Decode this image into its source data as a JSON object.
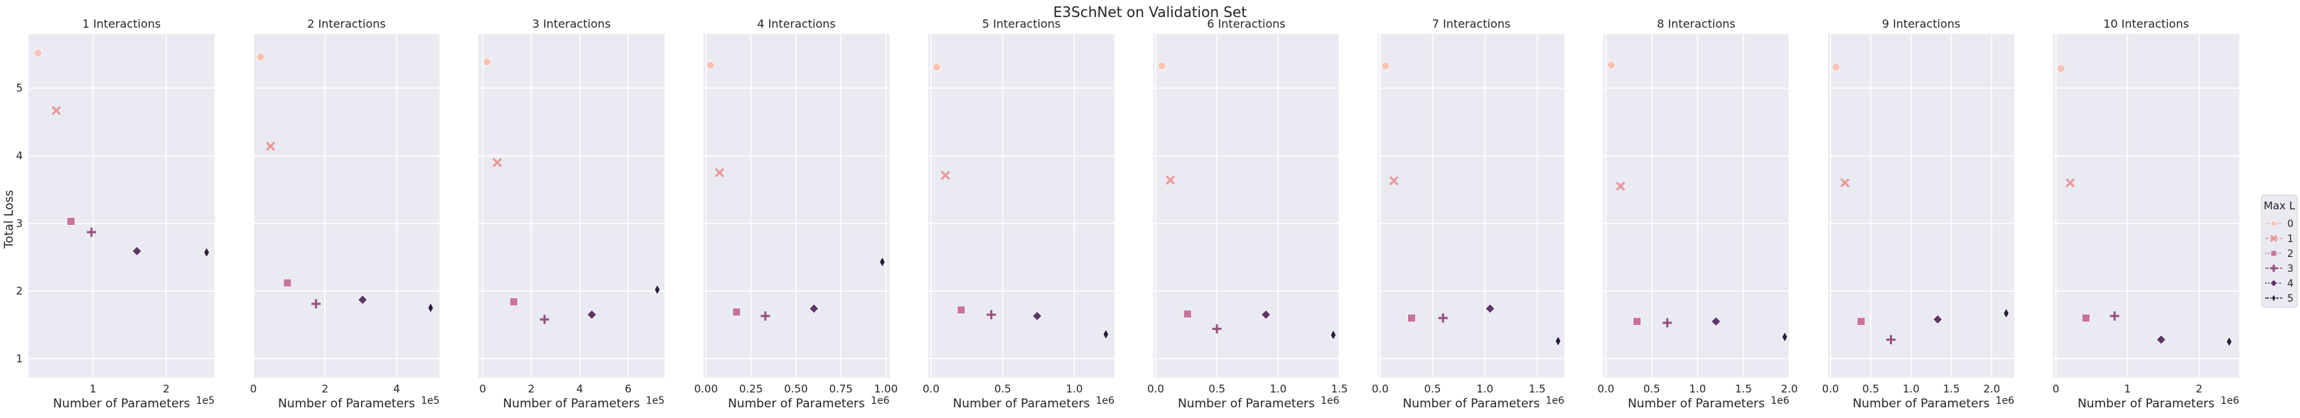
{
  "figure_title": "E3SchNet on Validation Set",
  "ylabel": "Total Loss",
  "xlabel": "Number of Parameters",
  "legend": {
    "title": "Max L",
    "placement": "right",
    "entries": [
      {
        "label": "0",
        "marker": "circle",
        "color": "#f5c4b5"
      },
      {
        "label": "1",
        "marker": "x",
        "color": "#e8989a"
      },
      {
        "label": "2",
        "marker": "square",
        "color": "#c7739b"
      },
      {
        "label": "3",
        "marker": "plus",
        "color": "#97517f"
      },
      {
        "label": "4",
        "marker": "diamond",
        "color": "#5f3566"
      },
      {
        "label": "5",
        "marker": "thin-diamond",
        "color": "#2c1c3e"
      }
    ]
  },
  "chart_data": [
    {
      "type": "scatter",
      "title": "1 Interactions",
      "x_multiplier": "1e5",
      "xlim": [
        0.12,
        2.66
      ],
      "xticks": [
        1,
        2
      ],
      "ylim": [
        0.72,
        5.8
      ],
      "yticks": [
        1,
        2,
        3,
        4,
        5
      ],
      "grid": true,
      "points": [
        {
          "l": 0,
          "x": 0.25,
          "y": 5.52
        },
        {
          "l": 1,
          "x": 0.5,
          "y": 4.67
        },
        {
          "l": 2,
          "x": 0.7,
          "y": 3.03
        },
        {
          "l": 3,
          "x": 0.98,
          "y": 2.87
        },
        {
          "l": 4,
          "x": 1.6,
          "y": 2.59
        },
        {
          "l": 5,
          "x": 2.55,
          "y": 2.57
        }
      ]
    },
    {
      "type": "scatter",
      "title": "2 Interactions",
      "x_multiplier": "1e5",
      "xlim": [
        0,
        5.2
      ],
      "xticks": [
        0,
        2,
        4
      ],
      "ylim": [
        0.72,
        5.8
      ],
      "yticks": [
        1,
        2,
        3,
        4,
        5
      ],
      "grid": true,
      "points": [
        {
          "l": 0,
          "x": 0.2,
          "y": 5.46
        },
        {
          "l": 1,
          "x": 0.48,
          "y": 4.14
        },
        {
          "l": 2,
          "x": 0.95,
          "y": 2.12
        },
        {
          "l": 3,
          "x": 1.75,
          "y": 1.81
        },
        {
          "l": 4,
          "x": 3.05,
          "y": 1.87
        },
        {
          "l": 5,
          "x": 4.95,
          "y": 1.75
        }
      ]
    },
    {
      "type": "scatter",
      "title": "3 Interactions",
      "x_multiplier": "1e5",
      "xlim": [
        -0.18,
        7.5
      ],
      "xticks": [
        0,
        2,
        4,
        6
      ],
      "ylim": [
        0.72,
        5.8
      ],
      "yticks": [
        1,
        2,
        3,
        4,
        5
      ],
      "grid": true,
      "points": [
        {
          "l": 0,
          "x": 0.18,
          "y": 5.39
        },
        {
          "l": 1,
          "x": 0.6,
          "y": 3.9
        },
        {
          "l": 2,
          "x": 1.28,
          "y": 1.84
        },
        {
          "l": 3,
          "x": 2.55,
          "y": 1.58
        },
        {
          "l": 4,
          "x": 4.5,
          "y": 1.65
        },
        {
          "l": 5,
          "x": 7.2,
          "y": 2.02
        }
      ]
    },
    {
      "type": "scatter",
      "title": "4 Interactions",
      "x_multiplier": "1e6",
      "xlim": [
        -0.015,
        1.02
      ],
      "xticks": [
        0.0,
        0.25,
        0.5,
        0.75,
        1.0
      ],
      "xtick_labels": [
        "0.00",
        "0.25",
        "0.50",
        "0.75",
        "1.00"
      ],
      "ylim": [
        0.72,
        5.8
      ],
      "yticks": [
        1,
        2,
        3,
        4,
        5
      ],
      "grid": true,
      "points": [
        {
          "l": 0,
          "x": 0.025,
          "y": 5.34
        },
        {
          "l": 1,
          "x": 0.075,
          "y": 3.75
        },
        {
          "l": 2,
          "x": 0.17,
          "y": 1.69
        },
        {
          "l": 3,
          "x": 0.33,
          "y": 1.63
        },
        {
          "l": 4,
          "x": 0.6,
          "y": 1.74
        },
        {
          "l": 5,
          "x": 0.98,
          "y": 2.43
        }
      ]
    },
    {
      "type": "scatter",
      "title": "5 Interactions",
      "x_multiplier": "1e6",
      "xlim": [
        -0.02,
        1.28
      ],
      "xticks": [
        0.0,
        0.5,
        1.0
      ],
      "xtick_labels": [
        "0.0",
        "0.5",
        "1.0"
      ],
      "ylim": [
        0.72,
        5.8
      ],
      "yticks": [
        1,
        2,
        3,
        4,
        5
      ],
      "grid": true,
      "points": [
        {
          "l": 0,
          "x": 0.04,
          "y": 5.31
        },
        {
          "l": 1,
          "x": 0.1,
          "y": 3.71
        },
        {
          "l": 2,
          "x": 0.21,
          "y": 1.72
        },
        {
          "l": 3,
          "x": 0.42,
          "y": 1.65
        },
        {
          "l": 4,
          "x": 0.74,
          "y": 1.63
        },
        {
          "l": 5,
          "x": 1.22,
          "y": 1.36
        }
      ]
    },
    {
      "type": "scatter",
      "title": "6 Interactions",
      "x_multiplier": "1e6",
      "xlim": [
        -0.02,
        1.5
      ],
      "xticks": [
        0.0,
        0.5,
        1.0,
        1.5
      ],
      "xtick_labels": [
        "0.0",
        "0.5",
        "1.0",
        "1.5"
      ],
      "ylim": [
        0.72,
        5.8
      ],
      "yticks": [
        1,
        2,
        3,
        4,
        5
      ],
      "grid": true,
      "points": [
        {
          "l": 0,
          "x": 0.05,
          "y": 5.33
        },
        {
          "l": 1,
          "x": 0.12,
          "y": 3.64
        },
        {
          "l": 2,
          "x": 0.26,
          "y": 1.66
        },
        {
          "l": 3,
          "x": 0.5,
          "y": 1.44
        },
        {
          "l": 4,
          "x": 0.9,
          "y": 1.65
        },
        {
          "l": 5,
          "x": 1.45,
          "y": 1.35
        }
      ]
    },
    {
      "type": "scatter",
      "title": "7 Interactions",
      "x_multiplier": "1e6",
      "xlim": [
        -0.02,
        1.76
      ],
      "xticks": [
        0.0,
        0.5,
        1.0,
        1.5
      ],
      "xtick_labels": [
        "0.0",
        "0.5",
        "1.0",
        "1.5"
      ],
      "ylim": [
        0.72,
        5.8
      ],
      "yticks": [
        1,
        2,
        3,
        4,
        5
      ],
      "grid": true,
      "points": [
        {
          "l": 0,
          "x": 0.05,
          "y": 5.33
        },
        {
          "l": 1,
          "x": 0.13,
          "y": 3.63
        },
        {
          "l": 2,
          "x": 0.3,
          "y": 1.6
        },
        {
          "l": 3,
          "x": 0.6,
          "y": 1.6
        },
        {
          "l": 4,
          "x": 1.05,
          "y": 1.74
        },
        {
          "l": 5,
          "x": 1.7,
          "y": 1.26
        }
      ]
    },
    {
      "type": "scatter",
      "title": "8 Interactions",
      "x_multiplier": "1e6",
      "xlim": [
        -0.03,
        2.0
      ],
      "xticks": [
        0.0,
        0.5,
        1.0,
        1.5,
        2.0
      ],
      "xtick_labels": [
        "0.0",
        "0.5",
        "1.0",
        "1.5",
        "2.0"
      ],
      "ylim": [
        0.72,
        5.8
      ],
      "yticks": [
        1,
        2,
        3,
        4,
        5
      ],
      "grid": true,
      "points": [
        {
          "l": 0,
          "x": 0.06,
          "y": 5.34
        },
        {
          "l": 1,
          "x": 0.16,
          "y": 3.55
        },
        {
          "l": 2,
          "x": 0.34,
          "y": 1.55
        },
        {
          "l": 3,
          "x": 0.67,
          "y": 1.53
        },
        {
          "l": 4,
          "x": 1.2,
          "y": 1.55
        },
        {
          "l": 5,
          "x": 1.95,
          "y": 1.32
        }
      ]
    },
    {
      "type": "scatter",
      "title": "9 Interactions",
      "x_multiplier": "1e6",
      "xlim": [
        -0.03,
        2.28
      ],
      "xticks": [
        0.0,
        0.5,
        1.0,
        1.5,
        2.0
      ],
      "xtick_labels": [
        "0.0",
        "0.5",
        "1.0",
        "1.5",
        "2.0"
      ],
      "ylim": [
        0.72,
        5.8
      ],
      "yticks": [
        1,
        2,
        3,
        4,
        5
      ],
      "grid": true,
      "points": [
        {
          "l": 0,
          "x": 0.07,
          "y": 5.31
        },
        {
          "l": 1,
          "x": 0.18,
          "y": 3.6
        },
        {
          "l": 2,
          "x": 0.38,
          "y": 1.55
        },
        {
          "l": 3,
          "x": 0.75,
          "y": 1.28
        },
        {
          "l": 4,
          "x": 1.33,
          "y": 1.58
        },
        {
          "l": 5,
          "x": 2.18,
          "y": 1.67
        }
      ]
    },
    {
      "type": "scatter",
      "title": "10 Interactions",
      "x_multiplier": "1e6",
      "xlim": [
        -0.04,
        2.56
      ],
      "xticks": [
        0,
        1,
        2
      ],
      "xtick_labels": [
        "0",
        "1",
        "2"
      ],
      "ylim": [
        0.72,
        5.8
      ],
      "yticks": [
        1,
        2,
        3,
        4,
        5
      ],
      "grid": true,
      "points": [
        {
          "l": 0,
          "x": 0.07,
          "y": 5.29
        },
        {
          "l": 1,
          "x": 0.2,
          "y": 3.6
        },
        {
          "l": 2,
          "x": 0.42,
          "y": 1.6
        },
        {
          "l": 3,
          "x": 0.82,
          "y": 1.63
        },
        {
          "l": 4,
          "x": 1.47,
          "y": 1.28
        },
        {
          "l": 5,
          "x": 2.42,
          "y": 1.25
        }
      ]
    }
  ]
}
